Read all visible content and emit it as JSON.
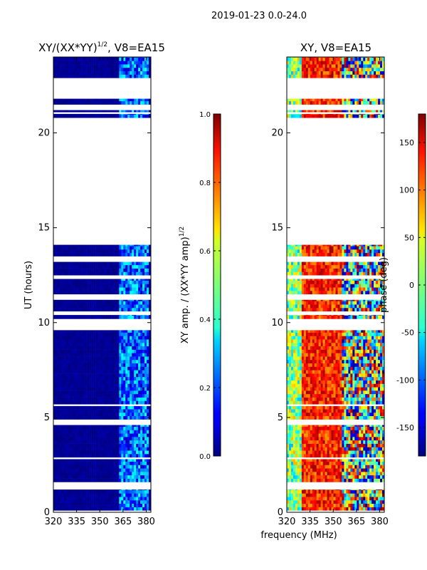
{
  "chart_data": [
    {
      "type": "heatmap",
      "panel": "amplitude",
      "title": "XY/(XX*YY)",
      "title_sup": "1/2",
      "title_suffix": ", V8=EA15",
      "xlabel": "",
      "ylabel": "UT (hours)",
      "xlim": [
        320,
        383
      ],
      "ylim": [
        0,
        24
      ],
      "xticks": [
        "320",
        "335",
        "350",
        "365",
        "380"
      ],
      "xtick_values": [
        320,
        335,
        350,
        365,
        380
      ],
      "yticks": [
        "0",
        "5",
        "10",
        "15",
        "20"
      ],
      "ytick_values": [
        0,
        5,
        10,
        15,
        20
      ],
      "colorbar": {
        "label": "XY amp. / (XX*YY amp)",
        "label_sup": "1/2",
        "range": [
          0.0,
          1.0
        ],
        "ticks": [
          "0.0",
          "0.2",
          "0.4",
          "0.6",
          "0.8",
          "1.0"
        ],
        "tick_values": [
          0.0,
          0.2,
          0.4,
          0.6,
          0.8,
          1.0
        ]
      },
      "data_bands_ut_hours": [
        [
          0.1,
          1.2
        ],
        [
          1.6,
          2.8
        ],
        [
          2.9,
          4.6
        ],
        [
          4.9,
          5.6
        ],
        [
          5.7,
          9.6
        ],
        [
          10.2,
          10.4
        ],
        [
          10.6,
          11.2
        ],
        [
          11.5,
          12.3
        ],
        [
          12.5,
          13.2
        ],
        [
          13.5,
          14.1
        ],
        [
          20.8,
          21.0
        ],
        [
          21.1,
          21.2
        ],
        [
          21.5,
          21.8
        ],
        [
          22.9,
          24.0
        ]
      ]
    },
    {
      "type": "heatmap",
      "panel": "phase",
      "title": "XY, V8=EA15",
      "xlabel": "frequency (MHz)",
      "ylabel": "",
      "xlim": [
        320,
        383
      ],
      "ylim": [
        0,
        24
      ],
      "xticks": [
        "320",
        "335",
        "350",
        "365",
        "380"
      ],
      "xtick_values": [
        320,
        335,
        350,
        365,
        380
      ],
      "yticks": [
        "0",
        "5",
        "10",
        "15",
        "20"
      ],
      "ytick_values": [
        0,
        5,
        10,
        15,
        20
      ],
      "colorbar": {
        "label": "phase (deg)",
        "range": [
          -180,
          180
        ],
        "ticks": [
          "-150",
          "-100",
          "-50",
          "0",
          "50",
          "100",
          "150"
        ],
        "tick_values": [
          -150,
          -100,
          -50,
          0,
          50,
          100,
          150
        ]
      },
      "data_bands_ut_hours": [
        [
          0.1,
          1.2
        ],
        [
          1.6,
          2.8
        ],
        [
          2.9,
          4.6
        ],
        [
          4.9,
          5.6
        ],
        [
          5.7,
          9.6
        ],
        [
          10.2,
          10.4
        ],
        [
          10.6,
          11.2
        ],
        [
          11.5,
          12.3
        ],
        [
          12.5,
          13.2
        ],
        [
          13.5,
          14.1
        ],
        [
          20.8,
          21.0
        ],
        [
          21.1,
          21.2
        ],
        [
          21.5,
          21.8
        ],
        [
          22.9,
          24.0
        ]
      ]
    }
  ],
  "suptitle": "2019-01-23 0.0-24.0"
}
